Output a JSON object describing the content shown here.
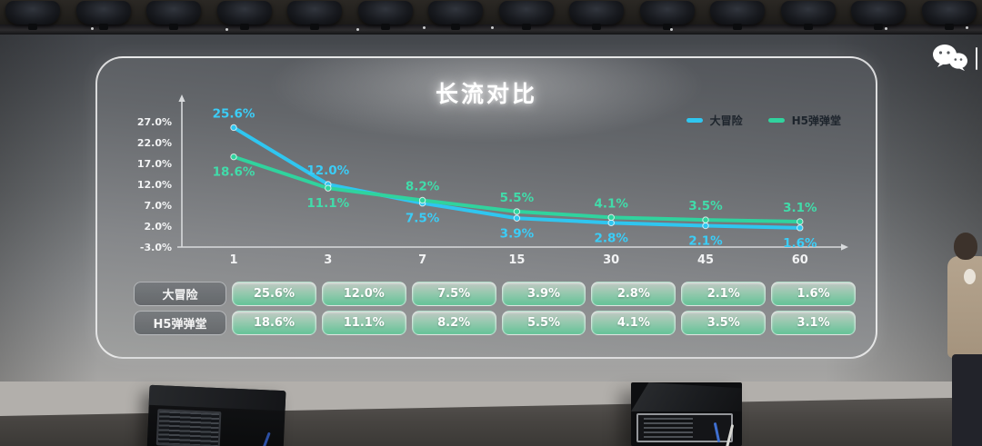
{
  "slide": {
    "title": "长流对比",
    "legend": {
      "items": [
        {
          "label": "大冒险",
          "color": "#2fc6f0"
        },
        {
          "label": "H5弹弹堂",
          "color": "#30d39e"
        }
      ]
    },
    "table": {
      "rows": [
        {
          "label": "大冒险",
          "values": [
            "25.6%",
            "12.0%",
            "7.5%",
            "3.9%",
            "2.8%",
            "2.1%",
            "1.6%"
          ]
        },
        {
          "label": "H5弹弹堂",
          "values": [
            "18.6%",
            "11.1%",
            "8.2%",
            "5.5%",
            "4.1%",
            "3.5%",
            "3.1%"
          ]
        }
      ]
    }
  },
  "chart_data": {
    "type": "line",
    "title": "长流对比",
    "categories": [
      "1",
      "3",
      "7",
      "15",
      "30",
      "45",
      "60"
    ],
    "series": [
      {
        "name": "大冒险",
        "color": "#2fc6f0",
        "label_color": "#3bcdf7",
        "values": [
          25.6,
          12.0,
          7.5,
          3.9,
          2.8,
          2.1,
          1.6
        ],
        "labels": [
          "25.6%",
          "12.0%",
          "7.5%",
          "3.9%",
          "2.8%",
          "2.1%",
          "1.6%"
        ]
      },
      {
        "name": "H5弹弹堂",
        "color": "#30d39e",
        "label_color": "#41dcaa",
        "values": [
          18.6,
          11.1,
          8.2,
          5.5,
          4.1,
          3.5,
          3.1
        ],
        "labels": [
          "18.6%",
          "11.1%",
          "8.2%",
          "5.5%",
          "4.1%",
          "3.5%",
          "3.1%"
        ]
      }
    ],
    "y_ticks": [
      {
        "label": "27.0%",
        "value": 27
      },
      {
        "label": "22.0%",
        "value": 22
      },
      {
        "label": "17.0%",
        "value": 17
      },
      {
        "label": "12.0%",
        "value": 12
      },
      {
        "label": "7.0%",
        "value": 7
      },
      {
        "label": "2.0%",
        "value": 2
      },
      {
        "label": "-3.0%",
        "value": -3
      }
    ],
    "ylim": [
      -3,
      31
    ],
    "grid": false,
    "legend_position": "top-right",
    "axis_color": "#d8dadc",
    "tick_text_color": "#f2f3f4"
  },
  "header": {
    "icons": [
      {
        "name": "wechat-icon"
      },
      {
        "name": "divider"
      },
      {
        "name": "partial-circle-icon"
      }
    ]
  }
}
